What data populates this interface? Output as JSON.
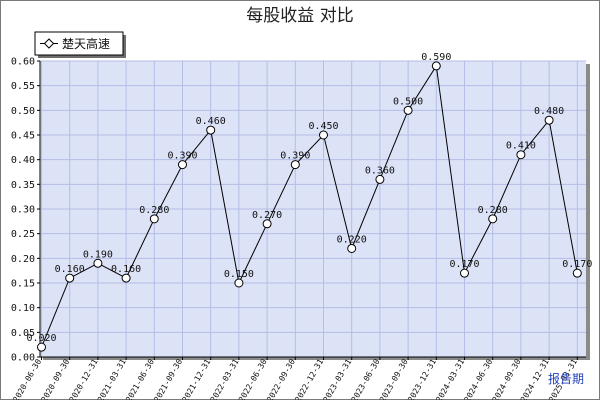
{
  "chart_data": {
    "type": "line",
    "title": "每股收益  对比",
    "xlabel": "报告期",
    "ylabel": "",
    "ylim": [
      0,
      0.6
    ],
    "yticks": [
      "0.00",
      "0.05",
      "0.10",
      "0.15",
      "0.20",
      "0.25",
      "0.30",
      "0.35",
      "0.40",
      "0.45",
      "0.50",
      "0.55",
      "0.60"
    ],
    "grid": true,
    "legend_position": "top-left",
    "categories": [
      "2020-06-30",
      "2020-09-30",
      "2020-12-31",
      "2021-03-31",
      "2021-06-30",
      "2021-09-30",
      "2021-12-31",
      "2022-03-31",
      "2022-06-30",
      "2022-09-30",
      "2022-12-31",
      "2023-03-31",
      "2023-06-30",
      "2023-09-30",
      "2023-12-31",
      "2024-03-31",
      "2024-06-30",
      "2024-09-30",
      "2024-12-31",
      "2025-03-31"
    ],
    "series": [
      {
        "name": "楚天高速",
        "values": [
          0.02,
          0.16,
          0.19,
          0.16,
          0.28,
          0.39,
          0.46,
          0.15,
          0.27,
          0.39,
          0.45,
          0.22,
          0.36,
          0.5,
          0.59,
          0.17,
          0.28,
          0.41,
          0.48,
          0.17
        ],
        "data_labels": [
          "0.020",
          "0.160",
          "0.190",
          "0.160",
          "0.280",
          "0.390",
          "0.460",
          "0.150",
          "0.270",
          "0.390",
          "0.450",
          "0.220",
          "0.360",
          "0.500",
          "0.590",
          "0.170",
          "0.280",
          "0.410",
          "0.480",
          "0.170"
        ]
      }
    ],
    "colors": {
      "plot_background": "#dde3f7",
      "grid": "#b3bde6",
      "line": "#000000",
      "marker_fill": "#ffffff",
      "shadow": "#8a8a8a"
    }
  }
}
